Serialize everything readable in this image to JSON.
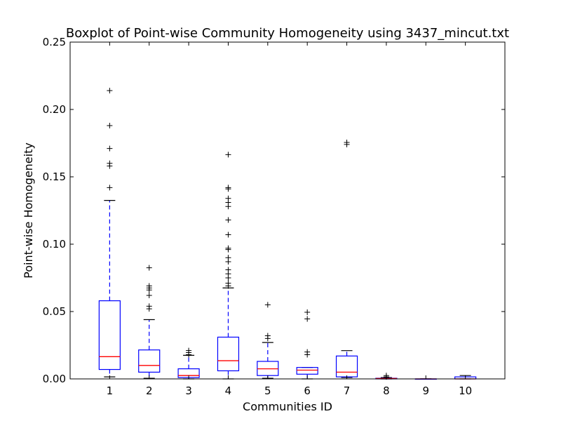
{
  "chart_data": {
    "type": "boxplot",
    "title": "Boxplot of Point-wise Community Homogeneity using 3437_mincut.txt",
    "xlabel": "Communities ID",
    "ylabel": "Point-wise Homogeneity",
    "ylim": [
      0.0,
      0.25
    ],
    "yticks": [
      "0.00",
      "0.05",
      "0.10",
      "0.15",
      "0.20",
      "0.25"
    ],
    "categories": [
      "1",
      "2",
      "3",
      "4",
      "5",
      "6",
      "7",
      "8",
      "9",
      "10"
    ],
    "grid": false,
    "colors": {
      "box": "#0000ff",
      "median": "#ff0000",
      "whisker": "#0000ff",
      "cap": "#000000",
      "flier": "#000000"
    },
    "boxes": [
      {
        "label": "1",
        "whislo": 0.0015,
        "q1": 0.007,
        "med": 0.0165,
        "q3": 0.058,
        "whishi": 0.1325,
        "fliers": [
          0.214,
          0.188,
          0.171,
          0.16,
          0.158,
          0.142
        ]
      },
      {
        "label": "2",
        "whislo": 0.0005,
        "q1": 0.005,
        "med": 0.01,
        "q3": 0.0215,
        "whishi": 0.044,
        "fliers": [
          0.0825,
          0.069,
          0.0675,
          0.066,
          0.062,
          0.054,
          0.052
        ]
      },
      {
        "label": "3",
        "whislo": 0.0,
        "q1": 0.001,
        "med": 0.0025,
        "q3": 0.0075,
        "whishi": 0.0175,
        "fliers": [
          0.021,
          0.0195,
          0.018
        ]
      },
      {
        "label": "4",
        "whislo": 0.0,
        "q1": 0.006,
        "med": 0.0135,
        "q3": 0.031,
        "whishi": 0.0675,
        "fliers": [
          0.1665,
          0.142,
          0.141,
          0.134,
          0.131,
          0.128,
          0.118,
          0.107,
          0.097,
          0.096,
          0.09,
          0.087,
          0.081,
          0.078,
          0.075,
          0.071,
          0.069
        ]
      },
      {
        "label": "5",
        "whislo": 0.0005,
        "q1": 0.0025,
        "med": 0.0075,
        "q3": 0.013,
        "whishi": 0.027,
        "fliers": [
          0.055,
          0.032,
          0.03
        ]
      },
      {
        "label": "6",
        "whislo": 0.0,
        "q1": 0.0035,
        "med": 0.0065,
        "q3": 0.0085,
        "whishi": 0.0085,
        "fliers": [
          0.0495,
          0.0445,
          0.02,
          0.018
        ]
      },
      {
        "label": "7",
        "whislo": 0.001,
        "q1": 0.0015,
        "med": 0.005,
        "q3": 0.017,
        "whishi": 0.021,
        "fliers": [
          0.1755,
          0.174
        ]
      },
      {
        "label": "8",
        "whislo": 0.0,
        "q1": 0.0,
        "med": 0.0003,
        "q3": 0.0005,
        "whishi": 0.001,
        "fliers": [
          0.0025,
          0.0015
        ]
      },
      {
        "label": "9",
        "whislo": 0.0,
        "q1": 0.0,
        "med": 0.0,
        "q3": 0.0,
        "whishi": 0.0,
        "fliers": []
      },
      {
        "label": "10",
        "whislo": 0.0,
        "q1": 0.0,
        "med": 0.0,
        "q3": 0.0015,
        "whishi": 0.0025,
        "fliers": []
      }
    ]
  }
}
